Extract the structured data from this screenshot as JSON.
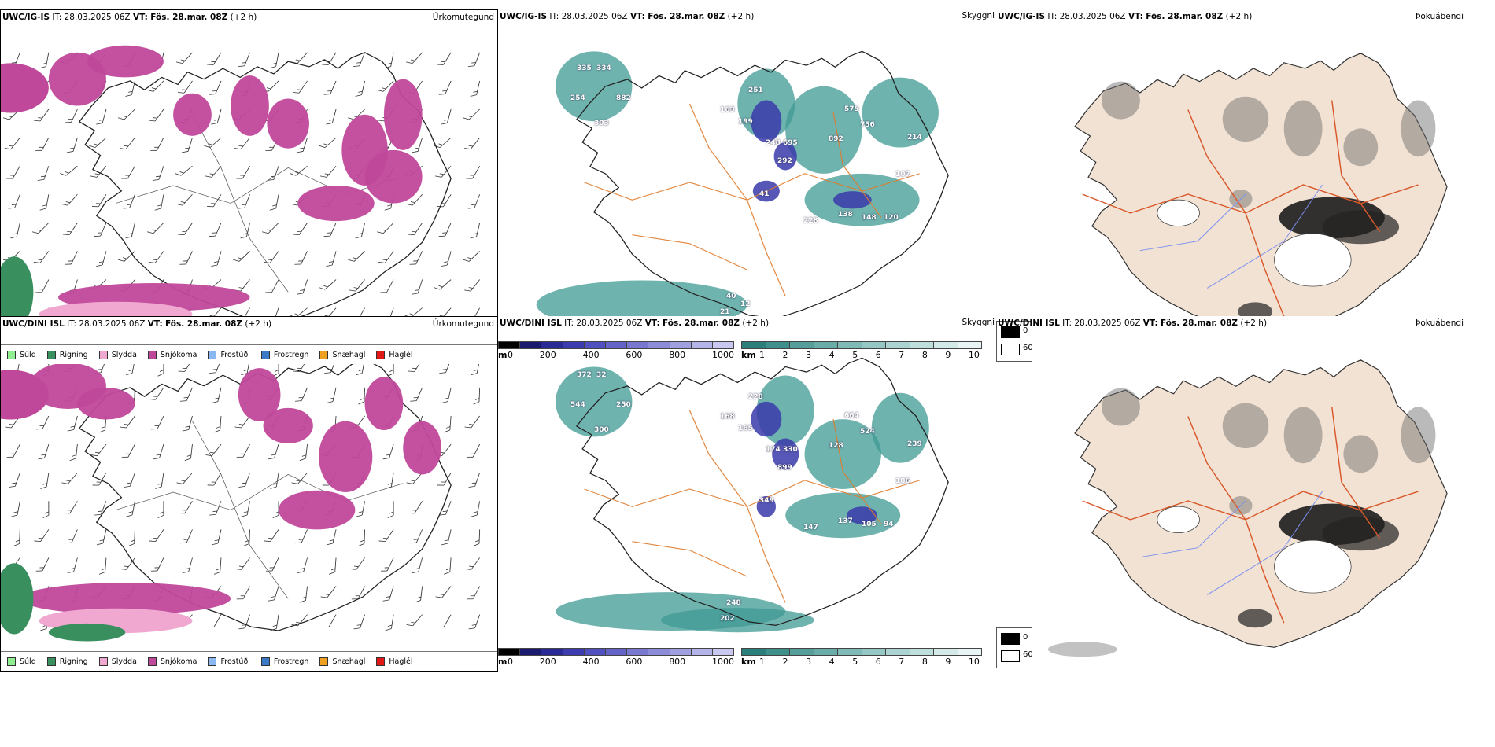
{
  "rows": [
    {
      "model": "UWC/IG-IS",
      "it_label": "IT:",
      "it_value": "28.03.2025 06Z",
      "vt_label": "VT:",
      "vt_value": "Fös. 28.mar. 08Z",
      "lead": "(+2 h)",
      "ceiling_labels": [
        "335",
        "334",
        "254",
        "882",
        "303",
        "163",
        "251",
        "199",
        "248",
        "695",
        "292",
        "575",
        "756",
        "214",
        "892",
        "107",
        "41",
        "228",
        "138",
        "148",
        "120",
        "40",
        "21",
        "12"
      ],
      "dini": false
    },
    {
      "model": "UWC/DINI ISL",
      "it_label": "IT:",
      "it_value": "28.03.2025 06Z",
      "vt_label": "VT:",
      "vt_value": "Fös. 28.mar. 08Z",
      "lead": "(+2 h)",
      "ceiling_labels": [
        "372",
        "32",
        "544",
        "250",
        "300",
        "168",
        "228",
        "165",
        "174",
        "330",
        "899",
        "664",
        "524",
        "239",
        "128",
        "186",
        "349",
        "147",
        "137",
        "105",
        "94",
        "248",
        "202"
      ],
      "dini": true
    }
  ],
  "panels": {
    "precip_type": "Úrkomutegund",
    "cloud": "Skyggni",
    "fog": "Þokuábendi"
  },
  "precip_legend": [
    {
      "label": "Súld",
      "color": "#90ee90"
    },
    {
      "label": "Rigning",
      "color": "#3a8f5f"
    },
    {
      "label": "Slydda",
      "color": "#f0a8d0"
    },
    {
      "label": "Snjókoma",
      "color": "#c0489a"
    },
    {
      "label": "Frostúði",
      "color": "#8ab8f0"
    },
    {
      "label": "Frostregn",
      "color": "#3a78c8"
    },
    {
      "label": "Snæhagl",
      "color": "#f0a020"
    },
    {
      "label": "Haglél",
      "color": "#e01818"
    }
  ],
  "ceiling_bar": {
    "unit": "m",
    "ticks": [
      "0",
      "200",
      "400",
      "600",
      "800",
      "1000"
    ],
    "colors": [
      "#000000",
      "#1a1a6e",
      "#2a2a96",
      "#3c3cb0",
      "#5050c0",
      "#6464c8",
      "#7878d0",
      "#8c8cd8",
      "#a0a0e0",
      "#b4b4e8",
      "#c8c8f0"
    ]
  },
  "visibility_bar": {
    "unit": "km",
    "ticks": [
      "1",
      "2",
      "3",
      "4",
      "5",
      "6",
      "7",
      "8",
      "9",
      "10"
    ],
    "colors": [
      "#2a7f7a",
      "#3f8f8a",
      "#559e99",
      "#6aaca8",
      "#80bab6",
      "#95c7c4",
      "#aad3d1",
      "#bfdfdd",
      "#d4eae9",
      "#e9f5f4"
    ]
  },
  "fog_legend": {
    "top": "0",
    "bottom": "60"
  },
  "colors": {
    "coast": "#222222",
    "roads": "#e07a2a",
    "fog_land": "#f2e2d4",
    "fog_roads": "#d8582a",
    "rivers": "#7a8ff0",
    "cloud_teal": "#3f9a94",
    "ceiling_blue": "#3a3aaa",
    "snow": "#c0489a",
    "rain": "#3a8f5f",
    "sleet": "#f0a8d0"
  }
}
